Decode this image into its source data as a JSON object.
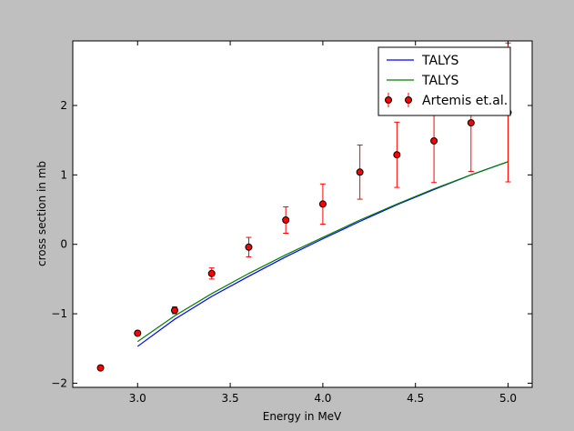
{
  "chart_data": {
    "type": "line",
    "title": "",
    "xlabel": "Energy in MeV",
    "ylabel": "cross section in mb",
    "xlim": [
      2.65,
      5.13
    ],
    "ylim": [
      -2.06,
      2.93
    ],
    "xticks": [
      3.0,
      3.5,
      4.0,
      4.5,
      5.0
    ],
    "xtick_labels": [
      "3.0",
      "3.5",
      "4.0",
      "4.5",
      "5.0"
    ],
    "yticks": [
      -2,
      -1,
      0,
      1,
      2
    ],
    "ytick_labels": [
      "−2",
      "−1",
      "0",
      "1",
      "2"
    ],
    "grid": false,
    "legend_position": "top-right",
    "series": [
      {
        "name": "TALYS",
        "kind": "line",
        "color": "#0000ff",
        "x": [
          3.0,
          3.2,
          3.4,
          3.6,
          3.8,
          4.0,
          4.2,
          4.4,
          4.6,
          4.8,
          5.0
        ],
        "y": [
          -1.47,
          -1.08,
          -0.75,
          -0.46,
          -0.18,
          0.08,
          0.33,
          0.57,
          0.79,
          1.0,
          1.19
        ]
      },
      {
        "name": "TALYS",
        "kind": "line",
        "color": "#008000",
        "x": [
          3.0,
          3.2,
          3.4,
          3.6,
          3.8,
          4.0,
          4.2,
          4.4,
          4.6,
          4.8,
          5.0
        ],
        "y": [
          -1.4,
          -1.03,
          -0.71,
          -0.42,
          -0.15,
          0.1,
          0.35,
          0.58,
          0.8,
          1.0,
          1.19
        ]
      },
      {
        "name": "Artemis et.al.",
        "kind": "errorbar",
        "color": "#ff0000",
        "x": [
          2.8,
          3.0,
          3.2,
          3.4,
          3.6,
          3.8,
          4.0,
          4.2,
          4.4,
          4.6,
          4.8,
          5.0
        ],
        "y": [
          -1.78,
          -1.28,
          -0.95,
          -0.42,
          -0.04,
          0.35,
          0.58,
          1.04,
          1.29,
          1.49,
          1.75,
          1.9
        ],
        "yerr": [
          0.02,
          0.03,
          0.05,
          0.08,
          0.14,
          0.19,
          0.29,
          0.39,
          0.47,
          0.6,
          0.7,
          1.0
        ]
      }
    ]
  }
}
